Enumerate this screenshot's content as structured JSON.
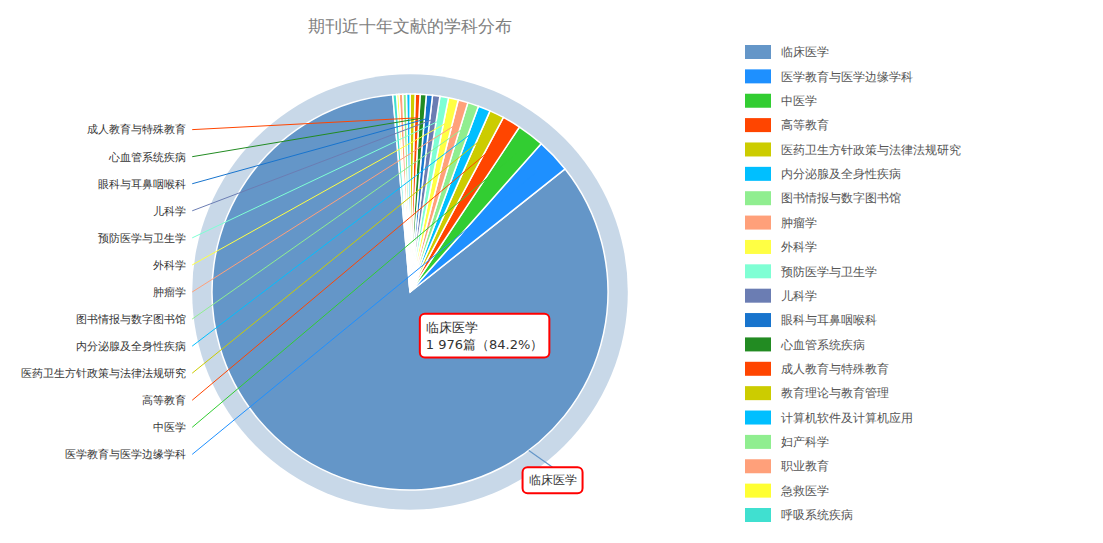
{
  "chart_data": {
    "type": "pie",
    "title": "期刊近十年文献的学科分布",
    "categories": [
      "临床医学",
      "医学教育与医学边缘学科",
      "中医学",
      "高等教育",
      "医药卫生方针政策与法律法规研究",
      "内分泌腺及全身性疾病",
      "图书情报与数字图书馆",
      "肿瘤学",
      "外科学",
      "预防医学与卫生学",
      "儿科学",
      "眼科与耳鼻咽喉科",
      "心血管系统疾病",
      "成人教育与特殊教育",
      "教育理论与教育管理",
      "计算机软件及计算机应用",
      "妇产科学",
      "职业教育",
      "急救医学",
      "呼吸系统疾病"
    ],
    "values": [
      84.2,
      2.8,
      2.2,
      1.5,
      1.2,
      1.0,
      0.9,
      0.8,
      0.8,
      0.7,
      0.6,
      0.5,
      0.5,
      0.4,
      0.4,
      0.3,
      0.3,
      0.3,
      0.2,
      0.3
    ],
    "colors": [
      "#6496C8",
      "#1E90FF",
      "#32CD32",
      "#FF4500",
      "#CCCC00",
      "#00BFFF",
      "#90EE90",
      "#FFA07A",
      "#FFFF44",
      "#7FFFD4",
      "#6B7DB3",
      "#1874CD",
      "#228B22",
      "#FF4500",
      "#CCCC00",
      "#00BFFF",
      "#90EE90",
      "#FFA07A",
      "#FFFF33",
      "#40E0D0"
    ],
    "annotations": [
      "成人教育与特殊教育",
      "心血管系统疾病",
      "眼科与耳鼻咽喉科",
      "儿科学",
      "预防医学与卫生学",
      "外科学",
      "肿瘤学",
      "图书情报与数字图书馆",
      "内分泌腺及全身性疾病",
      "医药卫生方针政策与法律法规研究",
      "高等教育",
      "中医学",
      "医学教育与医学边缘学科",
      "临床医学\n1 976篇（84.2%）",
      "临床医学"
    ],
    "legend": "right"
  }
}
